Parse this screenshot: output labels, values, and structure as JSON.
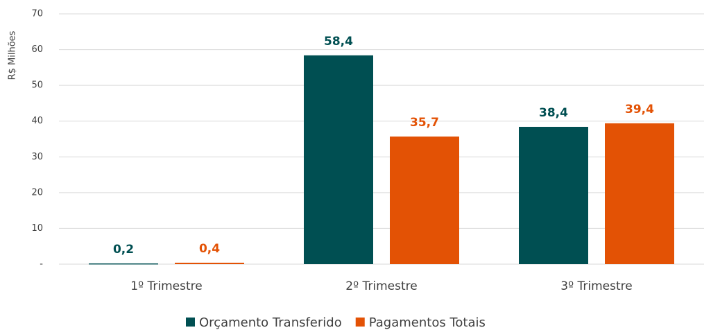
{
  "chart_data": {
    "type": "bar",
    "y_label": "R$ Milhões",
    "categories": [
      "1º Trimestre",
      "2º Trimestre",
      "3º Trimestre"
    ],
    "series": [
      {
        "name": "Orçamento Transferido",
        "color": "#004f52",
        "values": [
          0.2,
          58.4,
          38.4
        ],
        "value_labels": [
          "0,2",
          "58,4",
          "38,4"
        ]
      },
      {
        "name": "Pagamentos Totais",
        "color": "#e35205",
        "values": [
          0.4,
          35.7,
          39.4
        ],
        "value_labels": [
          "0,4",
          "35,7",
          "39,4"
        ]
      }
    ],
    "ylim": [
      0,
      70
    ],
    "yticks": [
      {
        "value": 0,
        "label": "-"
      },
      10,
      20,
      30,
      40,
      50,
      60,
      70
    ],
    "grid": true,
    "legend": "bottom"
  }
}
